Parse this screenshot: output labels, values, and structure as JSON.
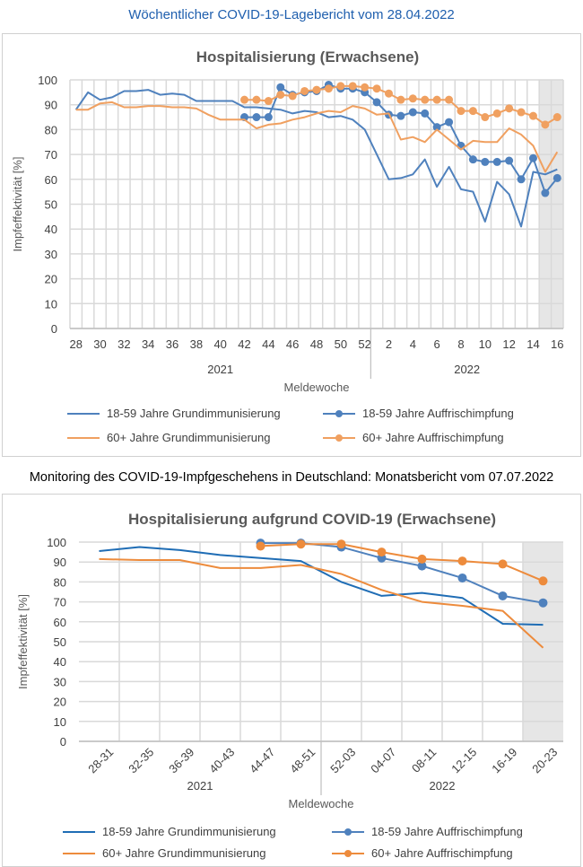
{
  "header1": "Wöchentlicher COVID-19-Lagebericht vom 28.04.2022",
  "header2": "Monitoring des COVID-19-Impfgeschehens in Deutschland: Monatsbericht vom 07.07.2022",
  "colors": {
    "blue": "#4f81bd",
    "blue_dark": "#1f6db5",
    "orange": "#f0a060",
    "orange_dark": "#ed8b3c",
    "shade": "#e6e6e6"
  },
  "chart_data": [
    {
      "type": "line",
      "title": "Hospitalisierung (Erwachsene)",
      "xlabel": "Meldewoche",
      "ylabel": "Impfeffektivität [%]",
      "ylim": [
        0,
        100
      ],
      "yticks": [
        0,
        10,
        20,
        30,
        40,
        50,
        60,
        70,
        80,
        90,
        100
      ],
      "grid": true,
      "legend": "bottom",
      "categories": [
        "28",
        "29",
        "30",
        "31",
        "32",
        "33",
        "34",
        "35",
        "36",
        "37",
        "38",
        "39",
        "40",
        "41",
        "42",
        "43",
        "44",
        "45",
        "46",
        "47",
        "48",
        "49",
        "50",
        "51",
        "52",
        "1",
        "2",
        "3",
        "4",
        "5",
        "6",
        "7",
        "8",
        "9",
        "10",
        "11",
        "12",
        "13",
        "14",
        "15",
        "16"
      ],
      "tick_labels": [
        "28",
        "",
        "30",
        "",
        "32",
        "",
        "34",
        "",
        "36",
        "",
        "38",
        "",
        "40",
        "",
        "42",
        "",
        "44",
        "",
        "46",
        "",
        "48",
        "",
        "50",
        "",
        "52",
        "",
        "2",
        "",
        "4",
        "",
        "6",
        "",
        "8",
        "",
        "10",
        "",
        "12",
        "",
        "14",
        "",
        "16"
      ],
      "years": [
        {
          "label": "2021",
          "from": "28",
          "to": "52"
        },
        {
          "label": "2022",
          "from": "1",
          "to": "16"
        }
      ],
      "shaded_categories": [
        "15",
        "16"
      ],
      "series": [
        {
          "name": "18-59 Jahre Grundimmunisierung",
          "color": "blue",
          "markers": false,
          "values": [
            88,
            95,
            92,
            93,
            95.5,
            95.5,
            96,
            94,
            94.5,
            94,
            91.5,
            91.5,
            91.5,
            91.5,
            89,
            89,
            88.5,
            88,
            86.5,
            87.5,
            87,
            85,
            85.5,
            84,
            80,
            70,
            60,
            60.5,
            62,
            68,
            57,
            65,
            56,
            55,
            43,
            59,
            54,
            41,
            63,
            62,
            64
          ]
        },
        {
          "name": "18-59 Jahre Auffrischimpfung",
          "color": "blue",
          "markers": true,
          "values": [
            null,
            null,
            null,
            null,
            null,
            null,
            null,
            null,
            null,
            null,
            null,
            null,
            null,
            null,
            85,
            85,
            85,
            97,
            94,
            95,
            95.5,
            98,
            96.5,
            96.5,
            95,
            91,
            86,
            85.5,
            87,
            86.5,
            81,
            83,
            73.5,
            68,
            67,
            67,
            67.5,
            60,
            68.5,
            54.5,
            60.5
          ]
        },
        {
          "name": "60+ Jahre Grundimmunisierung",
          "color": "orange",
          "markers": false,
          "values": [
            88,
            88,
            90.5,
            91,
            89,
            89,
            89.5,
            89.5,
            89,
            89,
            88.5,
            86,
            84,
            84,
            84,
            80.5,
            82,
            82.5,
            84,
            85,
            86.5,
            87.5,
            87,
            89.5,
            88.5,
            86,
            86.5,
            76,
            77,
            75,
            80,
            76,
            72,
            75.5,
            75,
            75,
            80.5,
            78,
            73.5,
            63,
            71
          ]
        },
        {
          "name": "60+ Jahre Auffrischimpfung",
          "color": "orange",
          "markers": true,
          "values": [
            null,
            null,
            null,
            null,
            null,
            null,
            null,
            null,
            null,
            null,
            null,
            null,
            null,
            null,
            92,
            92,
            91.5,
            94,
            93.5,
            95.5,
            96,
            96.5,
            97.5,
            97.5,
            97,
            96.5,
            94.5,
            92,
            92.5,
            92,
            92,
            92,
            87.5,
            87.5,
            85,
            86.5,
            88.5,
            87,
            85.5,
            82,
            85
          ]
        }
      ]
    },
    {
      "type": "line",
      "title": "Hospitalisierung aufgrund COVID-19 (Erwachsene)",
      "xlabel": "Meldewoche",
      "ylabel": "Impfeffektivität [%]",
      "ylim": [
        0,
        100
      ],
      "yticks": [
        0,
        10,
        20,
        30,
        40,
        50,
        60,
        70,
        80,
        90,
        100
      ],
      "grid": true,
      "legend": "bottom",
      "categories": [
        "28-31",
        "32-35",
        "36-39",
        "40-43",
        "44-47",
        "48-51",
        "52-03",
        "04-07",
        "08-11",
        "12-15",
        "16-19",
        "20-23"
      ],
      "tick_labels": [
        "28-31",
        "32-35",
        "36-39",
        "40-43",
        "44-47",
        "48-51",
        "52-03",
        "04-07",
        "08-11",
        "12-15",
        "16-19",
        "20-23"
      ],
      "years": [
        {
          "label": "2021",
          "from": "28-31",
          "to": "48-51"
        },
        {
          "label": "2022",
          "from": "52-03",
          "to": "20-23"
        }
      ],
      "shaded_categories": [
        "20-23"
      ],
      "series": [
        {
          "name": "18-59 Jahre Grundimmunisierung",
          "color": "blue_dark",
          "markers": false,
          "values": [
            95.5,
            97.5,
            96,
            93.5,
            92,
            90.5,
            80,
            73,
            74.5,
            72,
            59,
            58.5
          ]
        },
        {
          "name": "18-59 Jahre Auffrischimpfung",
          "color": "blue",
          "markers": true,
          "values": [
            null,
            null,
            null,
            null,
            99.5,
            99.5,
            97.5,
            92,
            88,
            82,
            73,
            69.5
          ]
        },
        {
          "name": "60+ Jahre Grundimmunisierung",
          "color": "orange_dark",
          "markers": false,
          "values": [
            91.5,
            91,
            91,
            87,
            87,
            88.5,
            84,
            76,
            70,
            68,
            65.5,
            47
          ]
        },
        {
          "name": "60+ Jahre Auffrischimpfung",
          "color": "orange_dark",
          "markers": true,
          "values": [
            null,
            null,
            null,
            null,
            98,
            99,
            99,
            95,
            91.5,
            90.5,
            89,
            80.5
          ]
        }
      ]
    }
  ]
}
